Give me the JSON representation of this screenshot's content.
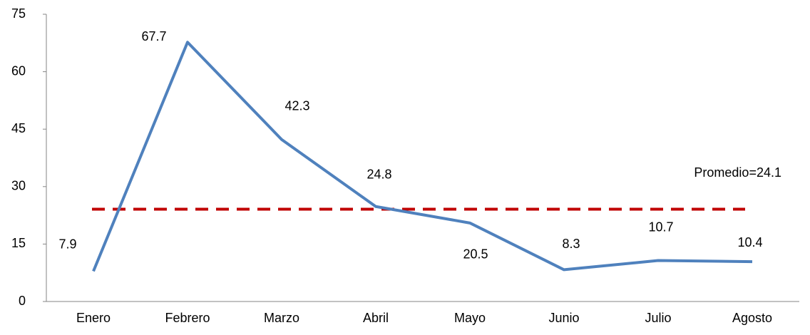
{
  "chart_data": {
    "type": "line",
    "categories": [
      "Enero",
      "Febrero",
      "Marzo",
      "Abril",
      "Mayo",
      "Junio",
      "Julio",
      "Agosto"
    ],
    "values": [
      7.9,
      67.7,
      42.3,
      24.8,
      20.5,
      8.3,
      10.7,
      10.4
    ],
    "color": "#4f81bd",
    "ylim": [
      0,
      75
    ],
    "yticks": [
      0,
      15,
      30,
      45,
      60,
      75
    ],
    "grid": false,
    "reference_line": {
      "value": 24.1,
      "label": "Promedio=24.1",
      "color": "#c00000",
      "style": "dashed"
    }
  }
}
